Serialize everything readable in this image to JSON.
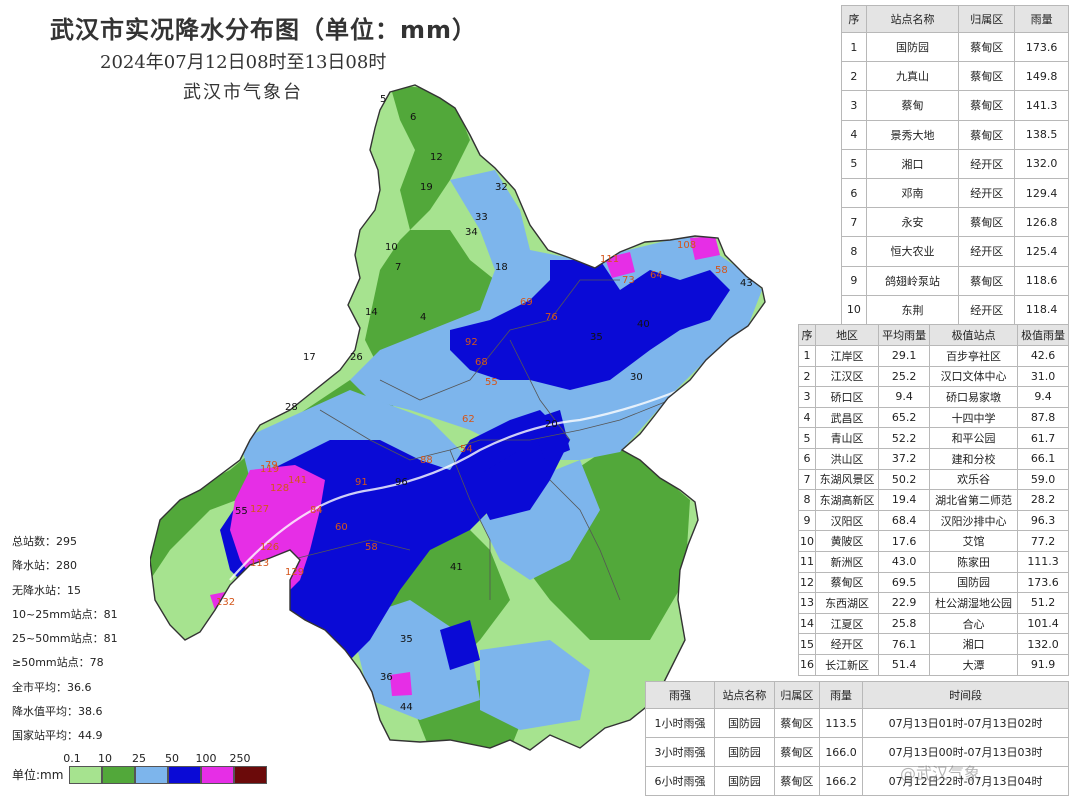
{
  "header": {
    "title": "武汉市实况降水分布图（单位：mm）",
    "subtitle": "2024年07月12日08时至13日08时",
    "agency": "武汉市气象台"
  },
  "stats": [
    "总站数：295",
    "降水站：280",
    "无降水站：15",
    "10~25mm站点：81",
    "25~50mm站点：81",
    "≥50mm站点：78",
    "全市平均：36.6",
    "降水值平均：38.6",
    "国家站平均：44.9"
  ],
  "legend": {
    "unit": "单位:mm",
    "ticks": [
      "0.1",
      "10",
      "25",
      "50",
      "100",
      "250"
    ],
    "colors": [
      "#a6e38f",
      "#52a83a",
      "#7db5ec",
      "#0a0ad6",
      "#e62ee6",
      "#6b0a0a"
    ]
  },
  "top10": {
    "headers": [
      "序",
      "站点名称",
      "归属区",
      "雨量"
    ],
    "rows": [
      [
        "1",
        "国防园",
        "蔡甸区",
        "173.6"
      ],
      [
        "2",
        "九真山",
        "蔡甸区",
        "149.8"
      ],
      [
        "3",
        "蔡甸",
        "蔡甸区",
        "141.3"
      ],
      [
        "4",
        "景秀大地",
        "蔡甸区",
        "138.5"
      ],
      [
        "5",
        "湘口",
        "经开区",
        "132.0"
      ],
      [
        "6",
        "邓南",
        "经开区",
        "129.4"
      ],
      [
        "7",
        "永安",
        "蔡甸区",
        "126.8"
      ],
      [
        "8",
        "恒大农业",
        "经开区",
        "125.4"
      ],
      [
        "9",
        "鸽翅岭泵站",
        "蔡甸区",
        "118.6"
      ],
      [
        "10",
        "东荆",
        "经开区",
        "118.4"
      ]
    ]
  },
  "districts": {
    "headers": [
      "序",
      "地区",
      "平均雨量",
      "极值站点",
      "极值雨量"
    ],
    "rows": [
      [
        "1",
        "江岸区",
        "29.1",
        "百步亭社区",
        "42.6"
      ],
      [
        "2",
        "江汉区",
        "25.2",
        "汉口文体中心",
        "31.0"
      ],
      [
        "3",
        "硚口区",
        "9.4",
        "硚口易家墩",
        "9.4"
      ],
      [
        "4",
        "武昌区",
        "65.2",
        "十四中学",
        "87.8"
      ],
      [
        "5",
        "青山区",
        "52.2",
        "和平公园",
        "61.7"
      ],
      [
        "6",
        "洪山区",
        "37.2",
        "建和分校",
        "66.1"
      ],
      [
        "7",
        "东湖风景区",
        "50.2",
        "欢乐谷",
        "59.0"
      ],
      [
        "8",
        "东湖高新区",
        "19.4",
        "湖北省第二师范",
        "28.2"
      ],
      [
        "9",
        "汉阳区",
        "68.4",
        "汉阳沙排中心",
        "96.3"
      ],
      [
        "10",
        "黄陂区",
        "17.6",
        "艾馆",
        "77.2"
      ],
      [
        "11",
        "新洲区",
        "43.0",
        "陈家田",
        "111.3"
      ],
      [
        "12",
        "蔡甸区",
        "69.5",
        "国防园",
        "173.6"
      ],
      [
        "13",
        "东西湖区",
        "22.9",
        "杜公湖湿地公园",
        "51.2"
      ],
      [
        "14",
        "江夏区",
        "25.8",
        "合心",
        "101.4"
      ],
      [
        "15",
        "经开区",
        "76.1",
        "湘口",
        "132.0"
      ],
      [
        "16",
        "长江新区",
        "51.4",
        "大潭",
        "91.9"
      ]
    ]
  },
  "intensity": {
    "headers": [
      "雨强",
      "站点名称",
      "归属区",
      "雨量",
      "时间段"
    ],
    "rows": [
      [
        "1小时雨强",
        "国防园",
        "蔡甸区",
        "113.5",
        "07月13日01时-07月13日02时"
      ],
      [
        "3小时雨强",
        "国防园",
        "蔡甸区",
        "166.0",
        "07月13日00时-07月13日03时"
      ],
      [
        "6小时雨强",
        "国防园",
        "蔡甸区",
        "166.2",
        "07月12日22时-07月13日04时"
      ]
    ]
  },
  "watermark": "@武汉气象",
  "map_labels": [
    {
      "text": "5",
      "c": "#111"
    },
    {
      "text": "6",
      "c": "#111"
    },
    {
      "text": "12",
      "c": "#111"
    },
    {
      "text": "19",
      "c": "#111"
    },
    {
      "text": "32",
      "c": "#111"
    },
    {
      "text": "33",
      "c": "#111"
    },
    {
      "text": "34",
      "c": "#111"
    },
    {
      "text": "18",
      "c": "#111"
    },
    {
      "text": "10",
      "c": "#111"
    },
    {
      "text": "7",
      "c": "#111"
    },
    {
      "text": "4",
      "c": "#111"
    },
    {
      "text": "14",
      "c": "#111"
    },
    {
      "text": "26",
      "c": "#111"
    },
    {
      "text": "69",
      "c": "#d4551a"
    },
    {
      "text": "76",
      "c": "#d4551a"
    },
    {
      "text": "92",
      "c": "#d4551a"
    },
    {
      "text": "68",
      "c": "#d4551a"
    },
    {
      "text": "55",
      "c": "#d4551a"
    },
    {
      "text": "111",
      "c": "#d4551a"
    },
    {
      "text": "108",
      "c": "#d4551a"
    },
    {
      "text": "73",
      "c": "#d4551a"
    },
    {
      "text": "64",
      "c": "#d4551a"
    },
    {
      "text": "58",
      "c": "#d4551a"
    },
    {
      "text": "43",
      "c": "#111"
    },
    {
      "text": "40",
      "c": "#111"
    },
    {
      "text": "35",
      "c": "#111"
    },
    {
      "text": "28",
      "c": "#111"
    },
    {
      "text": "17",
      "c": "#111"
    },
    {
      "text": "119",
      "c": "#d4551a"
    },
    {
      "text": "141",
      "c": "#d4551a"
    },
    {
      "text": "128",
      "c": "#d4551a"
    },
    {
      "text": "127",
      "c": "#d4551a"
    },
    {
      "text": "113",
      "c": "#d4551a"
    },
    {
      "text": "126",
      "c": "#d4551a"
    },
    {
      "text": "129",
      "c": "#d4551a"
    },
    {
      "text": "132",
      "c": "#d4551a"
    },
    {
      "text": "79",
      "c": "#d4551a"
    },
    {
      "text": "55",
      "c": "#111"
    },
    {
      "text": "84",
      "c": "#d4551a"
    },
    {
      "text": "60",
      "c": "#d4551a"
    },
    {
      "text": "91",
      "c": "#d4551a"
    },
    {
      "text": "96",
      "c": "#111"
    },
    {
      "text": "88",
      "c": "#d4551a"
    },
    {
      "text": "62",
      "c": "#d4551a"
    },
    {
      "text": "54",
      "c": "#d4551a"
    },
    {
      "text": "58",
      "c": "#d4551a"
    },
    {
      "text": "35",
      "c": "#111"
    },
    {
      "text": "41",
      "c": "#111"
    },
    {
      "text": "30",
      "c": "#111"
    },
    {
      "text": "20",
      "c": "#111"
    },
    {
      "text": "44",
      "c": "#111"
    },
    {
      "text": "36",
      "c": "#111"
    },
    {
      "text": "12",
      "c": "#111"
    }
  ]
}
